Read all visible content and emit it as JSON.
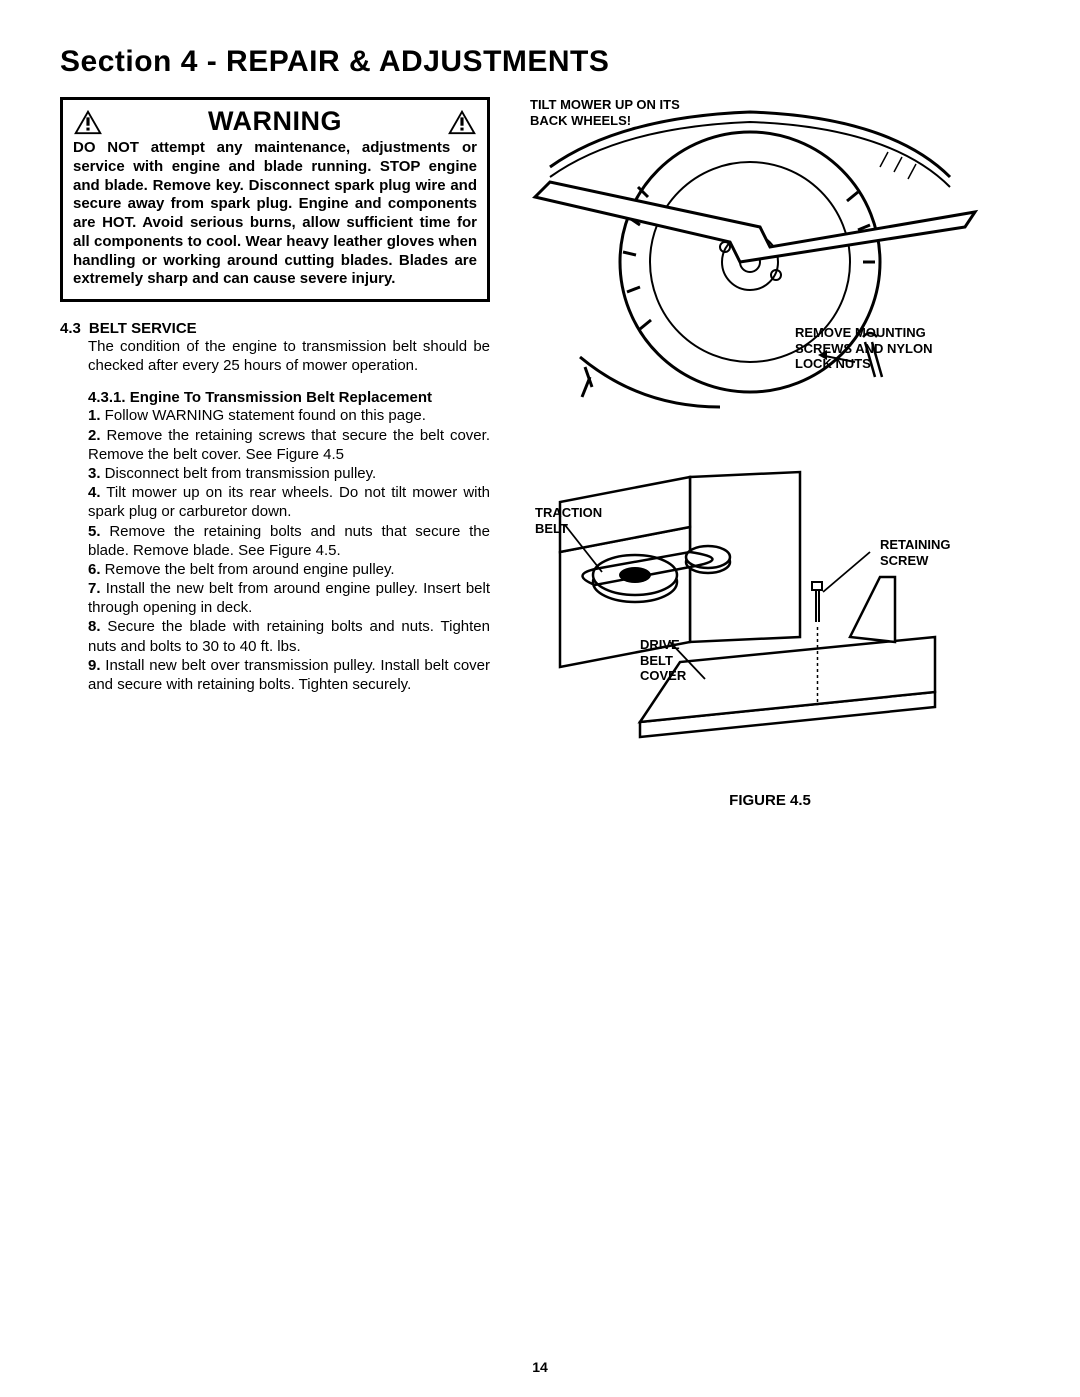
{
  "section_title": "Section 4 - REPAIR & ADJUSTMENTS",
  "warning": {
    "title": "WARNING",
    "text": "DO NOT attempt any maintenance, adjustments or service with engine and blade running. STOP engine and blade. Remove key. Disconnect spark plug wire and secure away from spark plug. Engine and components are HOT. Avoid serious burns, allow sufficient time for all components to cool. Wear heavy leather gloves when handling or working around cutting blades. Blades are extremely sharp and can cause severe injury."
  },
  "belt_service": {
    "number": "4.3",
    "title": "BELT SERVICE",
    "intro": "The condition of the engine to transmission belt should be checked after every 25 hours of mower operation.",
    "sub": {
      "number": "4.3.1.",
      "title": "Engine To Transmission Belt Replacement",
      "steps": [
        "Follow WARNING statement found on this page.",
        "Remove the retaining screws that secure the belt cover. Remove the belt cover. See Figure 4.5",
        "Disconnect belt from transmission pulley.",
        "Tilt mower up on its rear wheels. Do not tilt mower with spark plug or carburetor down.",
        "Remove the retaining bolts and nuts that secure the blade. Remove blade. See Figure 4.5.",
        "Remove the belt from around engine pulley.",
        "Install the new belt from around engine pulley. Insert belt through opening in deck.",
        "Secure the blade with retaining bolts and nuts. Tighten nuts and bolts to 30 to 40 ft. lbs.",
        "Install new belt over transmission pulley. Install belt cover and secure with retaining bolts. Tighten securely."
      ]
    }
  },
  "figure": {
    "caption": "FIGURE 4.5",
    "labels": {
      "tilt": "TILT MOWER UP ON ITS BACK WHEELS!",
      "remove": "REMOVE MOUNTING SCREWS AND NYLON LOCK NUTS",
      "traction": "TRACTION BELT",
      "retaining": "RETAINING SCREW",
      "drive": "DRIVE BELT COVER"
    }
  },
  "page_number": "14",
  "colors": {
    "text": "#000000",
    "bg": "#ffffff",
    "border": "#000000"
  }
}
